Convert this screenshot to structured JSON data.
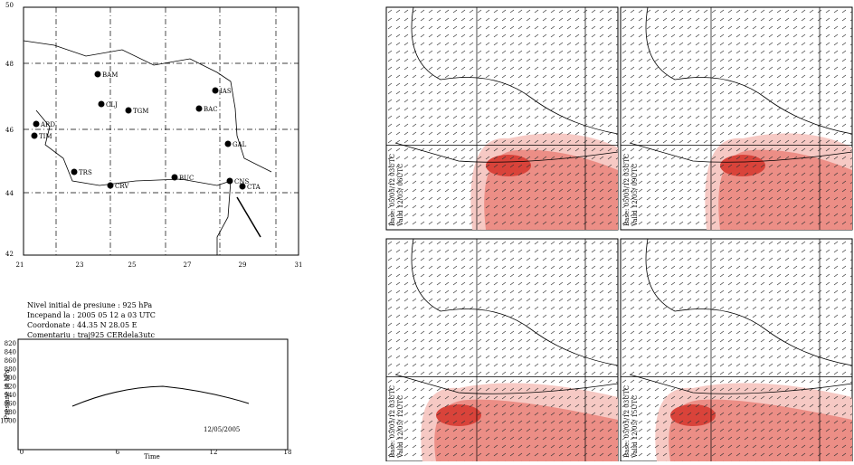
{
  "map": {
    "lat_labels": [
      "50",
      "48",
      "46",
      "44",
      "42"
    ],
    "lon_labels": [
      "21",
      "23",
      "25",
      "27",
      "29",
      "31"
    ],
    "stations": [
      {
        "label": "BAM"
      },
      {
        "label": "CLJ"
      },
      {
        "label": "TGM"
      },
      {
        "label": "IAS"
      },
      {
        "label": "BAC"
      },
      {
        "label": "ARD"
      },
      {
        "label": "TIM"
      },
      {
        "label": "GAL"
      },
      {
        "label": "TRS"
      },
      {
        "label": "CRV"
      },
      {
        "label": "BUC"
      },
      {
        "label": "CNS"
      },
      {
        "label": "CTA"
      }
    ]
  },
  "info": {
    "lines": [
      "Nivel initial de presiune :  925 hPa",
      "Incepand la :  2005 05 12 a 03 UTC",
      "Coordonate :  44.35 N   28.05 E",
      "Comentariu : traj925 CERdela3utc"
    ]
  },
  "profile": {
    "y_label": "Presiune in hPa",
    "x_label": "Time",
    "y_ticks": [
      "820",
      "840",
      "860",
      "880",
      "900",
      "920",
      "940",
      "960",
      "980",
      "1000"
    ],
    "x_ticks": [
      "0",
      "6",
      "12",
      "18"
    ],
    "date": "12/05/2005"
  },
  "panels": [
    {
      "base": "Base: 05/05/12 03UTC",
      "valid": "Valid 12/05/ 06UTC"
    },
    {
      "base": "Base: 05/05/12 03UTC",
      "valid": "Valid 12/05/ 09UTC"
    },
    {
      "base": "Base: 05/05/12 03UTC",
      "valid": "Valid 12/05/ 12UTC"
    },
    {
      "base": "Base: 05/05/12 03UTC",
      "valid": "Valid 12/05/ 15UTC"
    }
  ]
}
